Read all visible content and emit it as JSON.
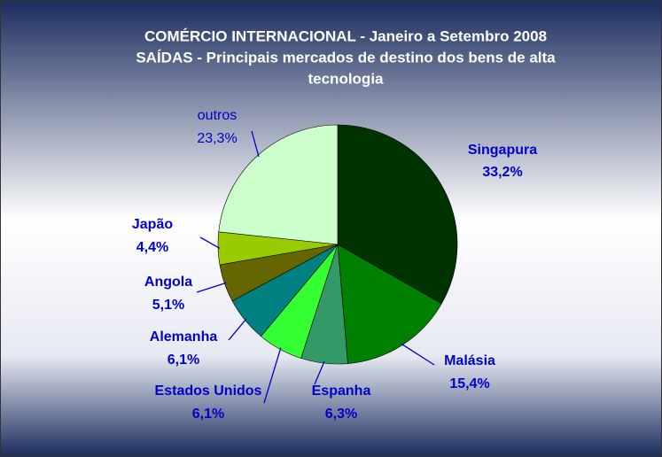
{
  "chart_data": {
    "type": "pie",
    "title": [
      "COMÉRCIO INTERNACIONAL - Janeiro a Setembro 2008",
      "SAÍDAS - Principais mercados de destino dos bens de alta",
      "tecnologia"
    ],
    "categories": [
      "Singapura",
      "Malásia",
      "Espanha",
      "Estados Unidos",
      "Alemanha",
      "Angola",
      "Japão",
      "outros"
    ],
    "values": [
      33.2,
      15.4,
      6.3,
      6.1,
      6.1,
      5.1,
      4.4,
      23.3
    ],
    "value_labels": [
      "33,2%",
      "15,4%",
      "6,3%",
      "6,1%",
      "6,1%",
      "5,1%",
      "4,4%",
      "23,3%"
    ],
    "colors": [
      "#003300",
      "#008000",
      "#339966",
      "#33ff33",
      "#008080",
      "#666600",
      "#99cc00",
      "#ccffcc"
    ]
  }
}
